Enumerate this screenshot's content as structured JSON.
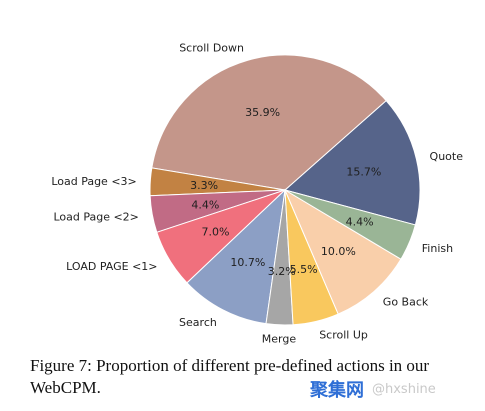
{
  "chart_data": {
    "type": "pie",
    "slices": [
      {
        "label": "Quote",
        "value": 15.7,
        "pct_label": "15.7%",
        "color": "#56648a"
      },
      {
        "label": "Scroll Down",
        "value": 35.9,
        "pct_label": "35.9%",
        "color": "#c4968a"
      },
      {
        "label": "Load Page <3>",
        "value": 3.3,
        "pct_label": "3.3%",
        "color": "#c28243"
      },
      {
        "label": "Load Page <2>",
        "value": 4.4,
        "pct_label": "4.4%",
        "color": "#c16b85"
      },
      {
        "label": "LOAD PAGE <1>",
        "value": 7.0,
        "pct_label": "7.0%",
        "color": "#f0707d"
      },
      {
        "label": "Search",
        "value": 10.7,
        "pct_label": "10.7%",
        "color": "#8c9fc5"
      },
      {
        "label": "Merge",
        "value": 3.2,
        "pct_label": "3.2%",
        "color": "#a6a6a6"
      },
      {
        "label": "Scroll Up",
        "value": 5.5,
        "pct_label": "5.5%",
        "color": "#f9c85e"
      },
      {
        "label": "Go Back",
        "value": 10.0,
        "pct_label": "10.0%",
        "color": "#f9cfaa"
      },
      {
        "label": "Finish",
        "value": 4.4,
        "pct_label": "4.4%",
        "color": "#9ab596"
      }
    ]
  },
  "caption": {
    "text": "Figure 7: Proportion of different pre-defined actions in our WebCPM."
  },
  "watermark": {
    "brand": "聚集网",
    "handle": "@hxshine"
  }
}
